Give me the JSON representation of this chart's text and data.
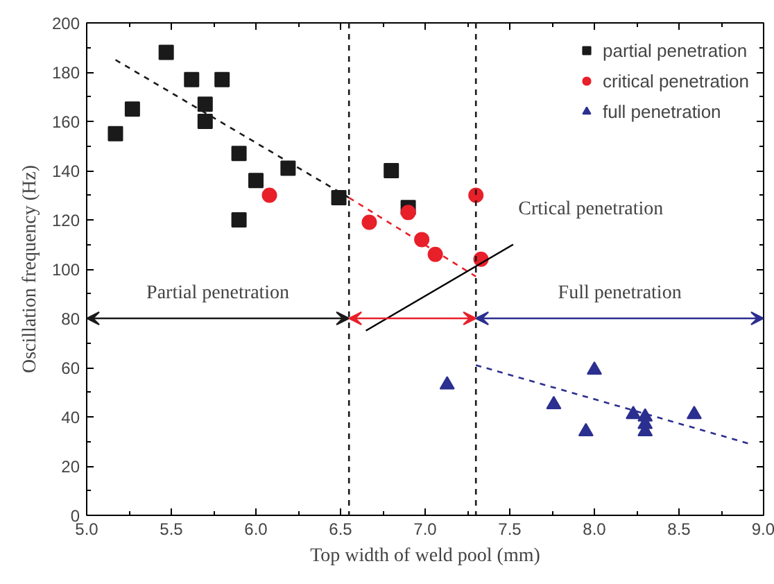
{
  "chart_data": {
    "type": "scatter",
    "xlabel": "Top width of weld pool (mm)",
    "ylabel": "Oscillation frequency (Hz)",
    "xlim": [
      5.0,
      9.0
    ],
    "ylim": [
      0,
      200
    ],
    "xticks": [
      {
        "value": 5.0,
        "label": "5.0"
      },
      {
        "value": 5.5,
        "label": "5.5"
      },
      {
        "value": 6.0,
        "label": "6.0"
      },
      {
        "value": 6.5,
        "label": "6.5"
      },
      {
        "value": 7.0,
        "label": "7.0"
      },
      {
        "value": 7.5,
        "label": "7.5"
      },
      {
        "value": 8.0,
        "label": "8.0"
      },
      {
        "value": 8.5,
        "label": "8.5"
      },
      {
        "value": 9.0,
        "label": "9.0"
      }
    ],
    "yticks": [
      0,
      20,
      40,
      60,
      80,
      100,
      120,
      140,
      160,
      180,
      200
    ],
    "grid": false,
    "legend": "top right",
    "series": [
      {
        "name": "partial penetration",
        "marker": "square",
        "color": "#1a1a1a",
        "x": [
          5.17,
          5.27,
          5.47,
          5.62,
          5.8,
          5.7,
          5.7,
          5.9,
          6.0,
          6.19,
          5.9,
          6.49,
          6.8,
          6.9
        ],
        "values": [
          155,
          165,
          188,
          177,
          177,
          167,
          160,
          147,
          136,
          141,
          120,
          129,
          140,
          125
        ]
      },
      {
        "name": "critical penetration",
        "marker": "circle",
        "color": "#e8202a",
        "x": [
          6.08,
          6.67,
          6.9,
          6.98,
          7.06,
          7.3,
          7.33
        ],
        "values": [
          130,
          119,
          123,
          112,
          106,
          130,
          104
        ]
      },
      {
        "name": "full penetration",
        "marker": "triangle",
        "color": "#2b2f8f",
        "x": [
          7.13,
          7.76,
          8.0,
          7.95,
          8.23,
          8.3,
          8.3,
          8.3,
          8.59
        ],
        "values": [
          53,
          45,
          59,
          34,
          41,
          40,
          37,
          34,
          41
        ]
      },
      {
        "type": "line",
        "line_style": "dashed",
        "color": "#1a1a1a",
        "x": [
          5.17,
          6.55
        ],
        "values": [
          185,
          129
        ]
      },
      {
        "type": "line",
        "line_style": "dashed",
        "color": "#e8202a",
        "x": [
          6.55,
          7.3
        ],
        "values": [
          129,
          97
        ]
      },
      {
        "type": "line",
        "line_style": "dashed",
        "color": "#2b2f8f",
        "x": [
          7.3,
          8.92
        ],
        "values": [
          61,
          29
        ]
      }
    ],
    "ref_lines": [
      {
        "axis": "x",
        "value": 6.55,
        "color": "#1a1a1a",
        "line_style": "dashed"
      },
      {
        "axis": "x",
        "value": 7.3,
        "color": "#1a1a1a",
        "line_style": "dashed"
      }
    ],
    "annotations": [
      "Partial penetration",
      "Full penetration",
      "Crtical penetration"
    ]
  }
}
